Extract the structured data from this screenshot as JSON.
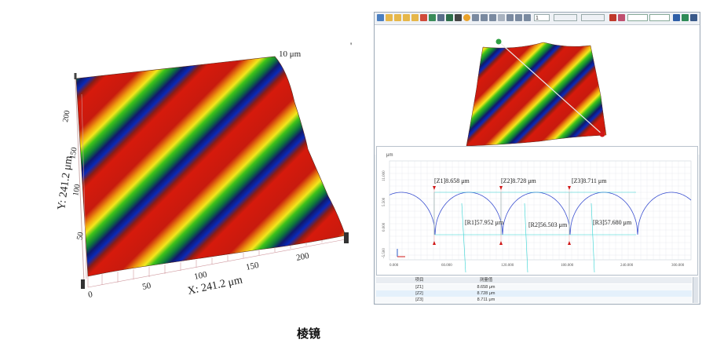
{
  "left_plot": {
    "z_label": "10 μm",
    "y_axis_label": "Y: 241.2 μm",
    "x_axis_label": "X: 241.2 μm",
    "y_ticks": [
      "200",
      "150",
      "100",
      "50"
    ],
    "x_ticks": [
      "0",
      "50",
      "100",
      "150",
      "200"
    ],
    "apostrophe": "'"
  },
  "toolbar": {
    "dropdown_value": "1",
    "colors": {
      "accent_red": "#c0392b",
      "accent_green": "#2e8b57",
      "accent_blue": "#2f5fa8"
    }
  },
  "profile": {
    "unit": "μm",
    "y_ticks": [
      "11.000",
      "5.500",
      "0.000",
      "-5.500"
    ],
    "x_ticks": [
      "0.000",
      "60.000",
      "120.000",
      "180.000",
      "240.000",
      "300.000"
    ],
    "labels": {
      "z1": "[Z1]8.658 μm",
      "z2": "[Z2]8.728 μm",
      "z3": "[Z3]8.711 μm",
      "r1": "[R1]57.952 μm",
      "r2": "[R2]56.503 μm",
      "r3": "[R3]57.680 μm"
    }
  },
  "table": {
    "headers": [
      "项目",
      "测量值"
    ],
    "rows": [
      {
        "item": "[Z1]",
        "value": "8.658 μm"
      },
      {
        "item": "[Z2]",
        "value": "8.728 μm"
      },
      {
        "item": "[Z3]",
        "value": "8.711 μm"
      }
    ]
  },
  "caption": "棱镜"
}
